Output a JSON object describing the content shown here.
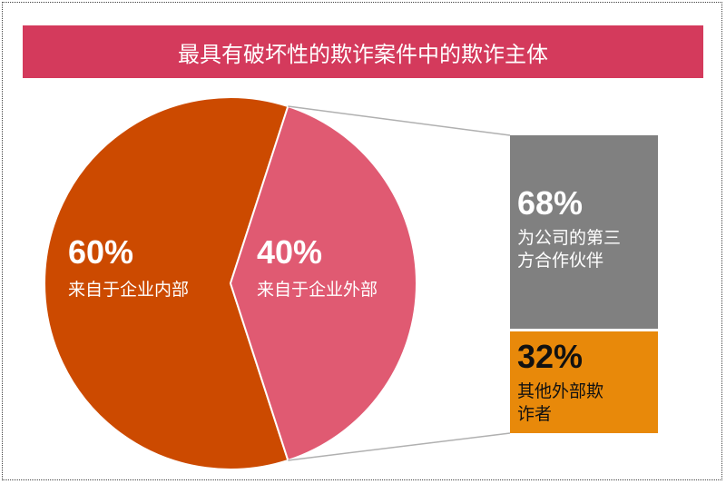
{
  "title": "最具有破坏性的欺诈案件中的欺诈主体",
  "colors": {
    "title_bg": "#d43a5c",
    "internal": "#cc4a00",
    "external": "#e05a72",
    "partners": "#808080",
    "others": "#e8890a",
    "connector": "#b0b0b0"
  },
  "chart_data": [
    {
      "type": "pie",
      "title": "最具有破坏性的欺诈案件中的欺诈主体",
      "slices": [
        {
          "label": "来自于企业内部",
          "value": 60,
          "display": "60%"
        },
        {
          "label": "来自于企业外部",
          "value": 40,
          "display": "40%"
        }
      ]
    },
    {
      "type": "bar",
      "stacked": true,
      "parent": "来自于企业外部",
      "segments": [
        {
          "label": "为公司的第三方合作伙伴",
          "value": 68,
          "display": "68%"
        },
        {
          "label": "其他外部欺诈者",
          "value": 32,
          "display": "32%"
        }
      ]
    }
  ],
  "labels": {
    "internal": {
      "pct": "60%",
      "line1": "来自于企业内部"
    },
    "external": {
      "pct": "40%",
      "line1": "来自于企业外部"
    },
    "partners": {
      "pct": "68%",
      "line1": "为公司的第三",
      "line2": "方合作伙伴"
    },
    "others": {
      "pct": "32%",
      "line1": "其他外部欺",
      "line2": "诈者"
    }
  }
}
